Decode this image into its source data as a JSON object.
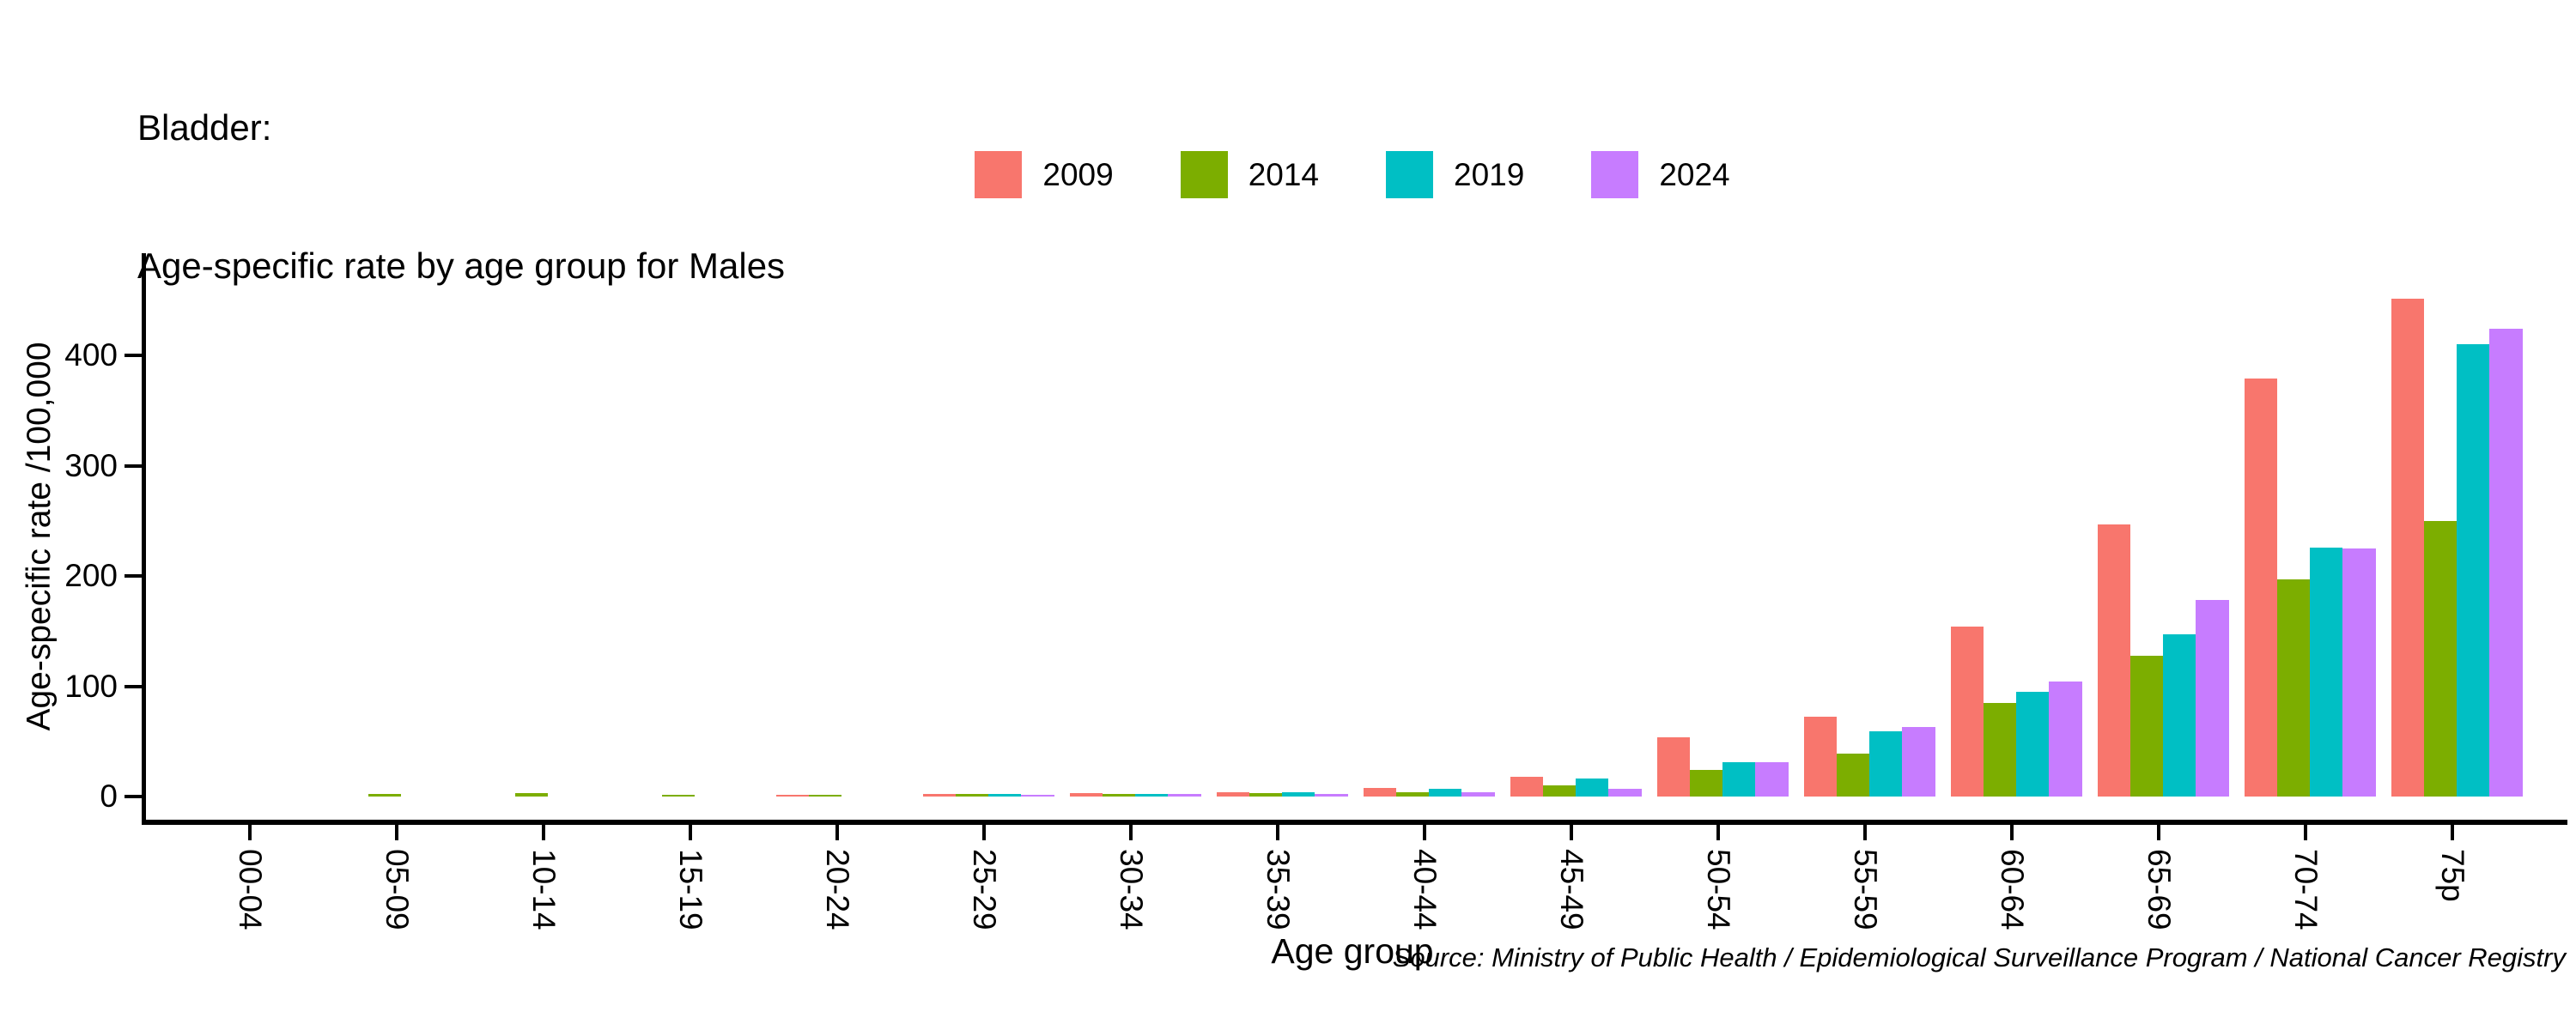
{
  "title": {
    "line1": "Bladder:",
    "line2": "Age-specific rate by age group for Males"
  },
  "chart_data": {
    "type": "bar",
    "title": "Bladder: Age-specific rate by age group for Males",
    "categories": [
      "00-04",
      "05-09",
      "10-14",
      "15-19",
      "20-24",
      "25-29",
      "30-34",
      "35-39",
      "40-44",
      "45-49",
      "50-54",
      "55-59",
      "60-64",
      "65-69",
      "70-74",
      "75p"
    ],
    "series": [
      {
        "name": "2009",
        "color": "#F8766D",
        "values": [
          0,
          0,
          0,
          0,
          1,
          2,
          3,
          4,
          8,
          18,
          54,
          72,
          154,
          247,
          379,
          451
        ]
      },
      {
        "name": "2014",
        "color": "#7CAE00",
        "values": [
          0,
          2,
          3,
          1,
          1,
          2,
          2,
          3,
          4,
          10,
          24,
          39,
          85,
          128,
          197,
          250
        ]
      },
      {
        "name": "2019",
        "color": "#00BFC4",
        "values": [
          0,
          0,
          0,
          0,
          0,
          2,
          2,
          4,
          7,
          16,
          31,
          59,
          95,
          147,
          226,
          410
        ]
      },
      {
        "name": "2024",
        "color": "#C77CFF",
        "values": [
          0,
          0,
          0,
          0,
          0,
          1,
          2,
          2,
          4,
          7,
          31,
          63,
          104,
          178,
          225,
          424
        ]
      }
    ],
    "xlabel": "Age group",
    "ylabel": "Age-specific rate /100,000",
    "yticks": [
      0,
      100,
      200,
      300,
      400
    ],
    "ylim": [
      0,
      493
    ],
    "grid": false,
    "legend_position": "top-center",
    "axis_color": "#000000",
    "background_color": "#FFFFFF"
  },
  "source_note": "Source: Ministry of Public Health / Epidemiological Surveillance Program / National Cancer Registry"
}
